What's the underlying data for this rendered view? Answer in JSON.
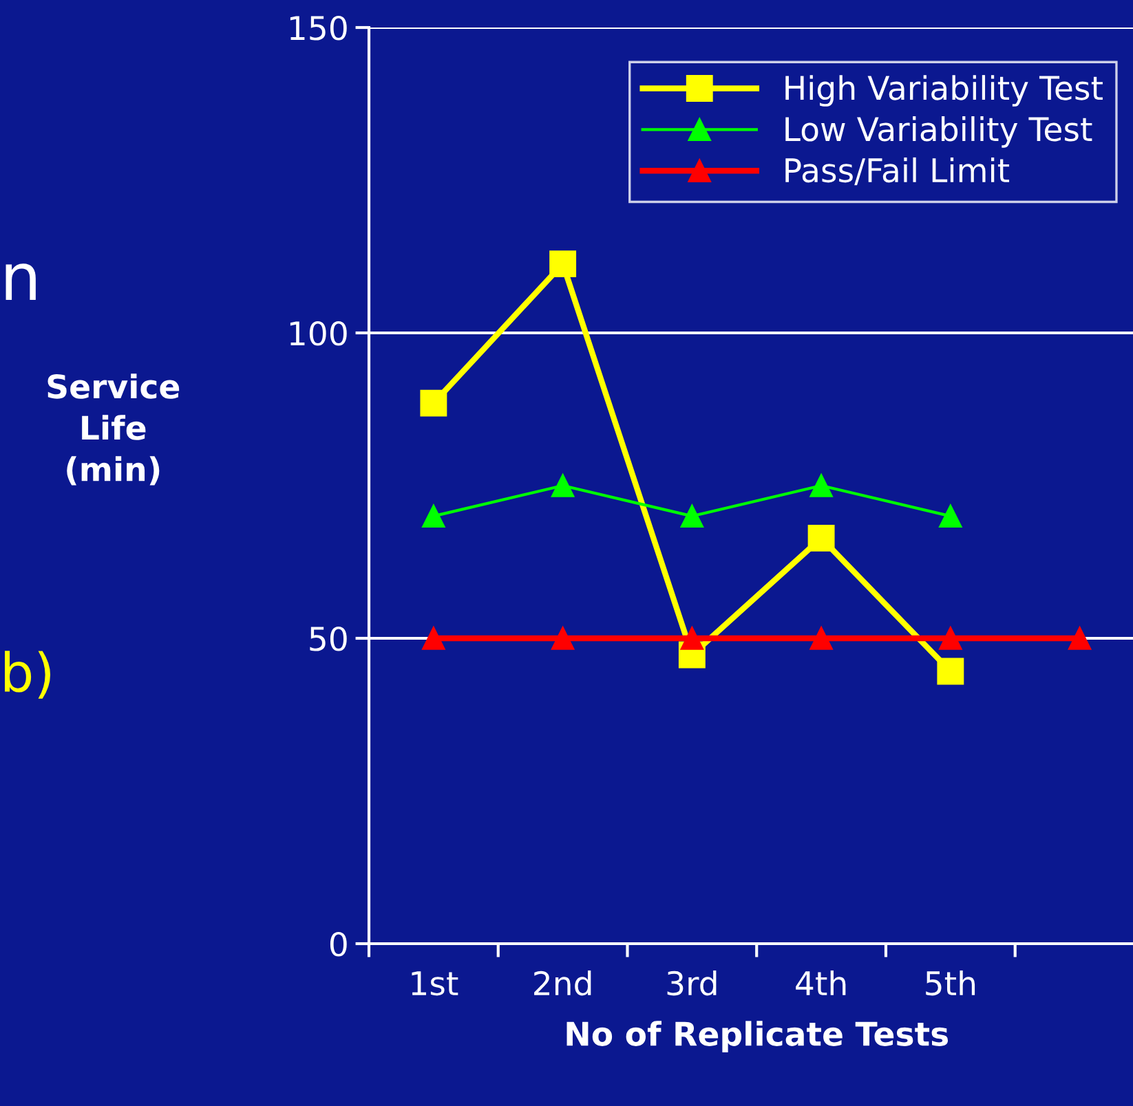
{
  "chart_data": {
    "type": "line",
    "categories": [
      "1st",
      "2nd",
      "3rd",
      "4th",
      "5th",
      null
    ],
    "series": [
      {
        "name": "High Variability Test",
        "color": "#ffff00",
        "marker": "square",
        "values": [
          88.5,
          111.3,
          47.3,
          66.4,
          44.6,
          null
        ]
      },
      {
        "name": "Low Variability Test",
        "color": "#00ff00",
        "marker": "triangle",
        "values": [
          70,
          75,
          70,
          75,
          70,
          null
        ]
      },
      {
        "name": "Pass/Fail Limit",
        "color": "#ff0000",
        "marker": "triangle",
        "values": [
          50,
          50,
          50,
          50,
          50,
          50
        ]
      }
    ],
    "ylabel": "Service\nLife\n(min)",
    "xlabel": "No of Replicate Tests",
    "ylim": [
      0,
      150
    ],
    "yticks": [
      0,
      50,
      100,
      150
    ],
    "grid": "y",
    "legend": "top right",
    "annotations": [
      "n",
      "b)"
    ]
  }
}
